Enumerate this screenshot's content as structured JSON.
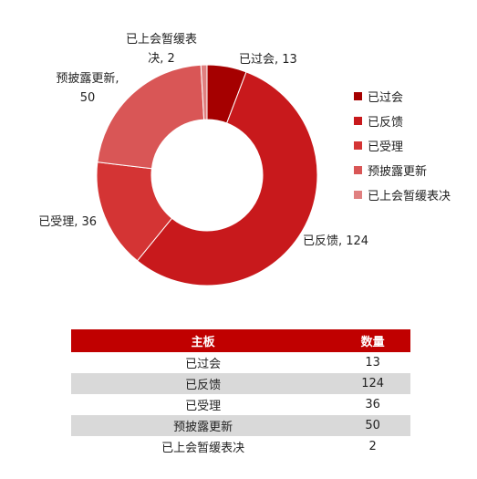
{
  "chart_data": {
    "type": "pie",
    "donut": true,
    "categories": [
      "已过会",
      "已反馈",
      "已受理",
      "预披露更新",
      "已上会暂缓表决"
    ],
    "values": [
      13,
      124,
      36,
      50,
      2
    ],
    "data_labels": [
      "已过会, 13",
      "已反馈, 124",
      "已受理, 36",
      "预披露更新,|50",
      "已上会暂缓表|决, 2"
    ],
    "colors": [
      "#a50000",
      "#c8191c",
      "#d43434",
      "#d95656",
      "#e08080"
    ],
    "legend_position": "right"
  },
  "table": {
    "headers": [
      "主板",
      "数量"
    ],
    "rows": [
      [
        "已过会",
        "13"
      ],
      [
        "已反馈",
        "124"
      ],
      [
        "已受理",
        "36"
      ],
      [
        "预披露更新",
        "50"
      ],
      [
        "已上会暂缓表决",
        "2"
      ]
    ]
  }
}
